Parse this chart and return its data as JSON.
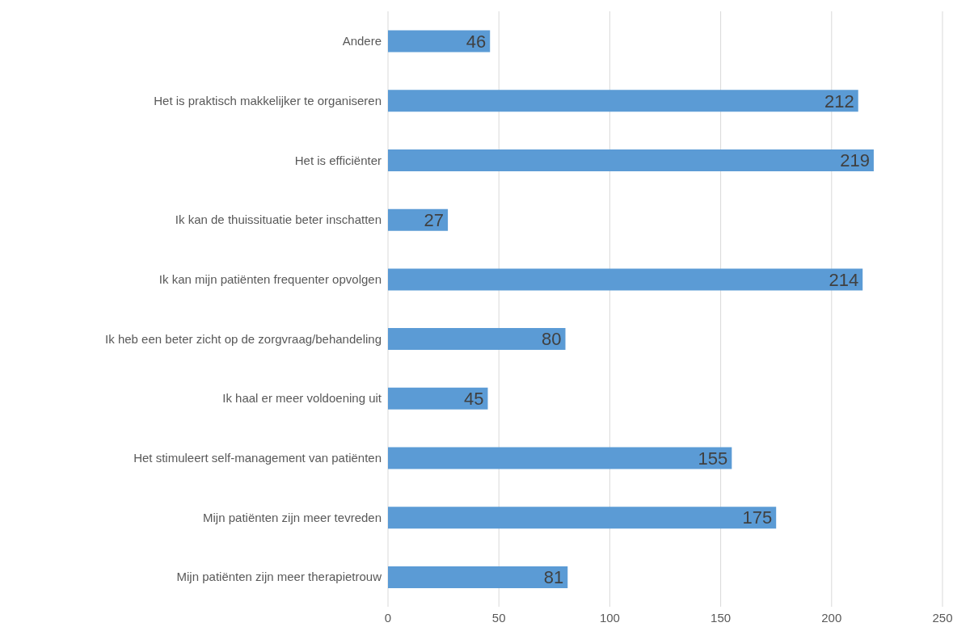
{
  "chart_data": {
    "type": "bar",
    "orientation": "horizontal",
    "categories": [
      "Andere",
      "Het is praktisch makkelijker te organiseren",
      "Het is efficiënter",
      "Ik kan de thuissituatie beter inschatten",
      "Ik kan mijn patiënten frequenter opvolgen",
      "Ik heb een beter zicht op de zorgvraag/behandeling",
      "Ik haal er meer voldoening uit",
      "Het stimuleert self-management van patiënten",
      "Mijn patiënten zijn meer tevreden",
      "Mijn patiënten zijn meer therapietrouw"
    ],
    "values": [
      46,
      212,
      219,
      27,
      214,
      80,
      45,
      155,
      175,
      81
    ],
    "color": "#5b9bd5",
    "xlim": [
      0,
      250
    ],
    "xticks": [
      0,
      50,
      100,
      150,
      200,
      250
    ],
    "grid": "x",
    "data_labels": true
  }
}
